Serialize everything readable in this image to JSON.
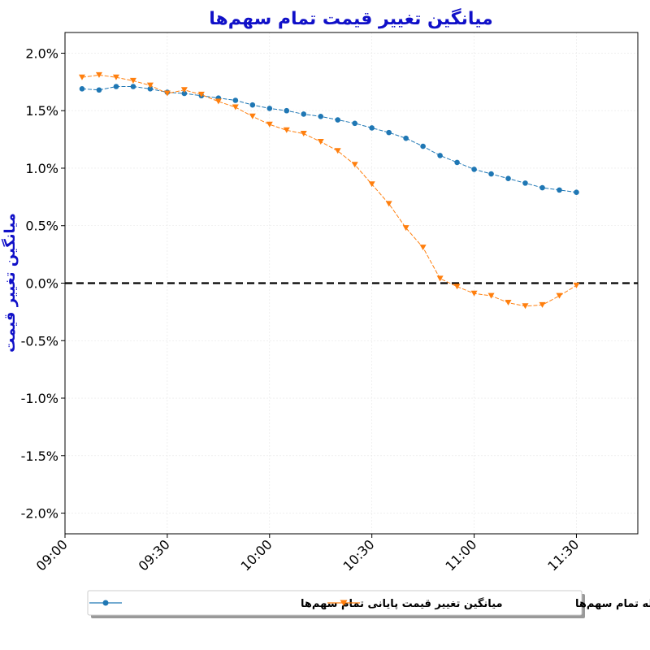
{
  "chart_data": {
    "type": "line",
    "title": "میانگین تغییر قیمت تمام سهم‌ها",
    "xlabel": "",
    "ylabel": "میانگین تغییر قیمت",
    "x_ticks": [
      "09:00",
      "09:30",
      "10:00",
      "10:30",
      "11:00",
      "11:30"
    ],
    "y_ticks": [
      "-2.0%",
      "-1.5%",
      "-1.0%",
      "-0.5%",
      "0.0%",
      "0.5%",
      "1.0%",
      "1.5%",
      "2.0%"
    ],
    "ylim": [
      -2.18,
      2.18
    ],
    "xlim": [
      "09:00",
      "11:48"
    ],
    "y_unit": "percent",
    "grid": true,
    "legend_position": "bottom-center",
    "reference_line": {
      "y": 0.0,
      "style": "dashed",
      "color": "#000000"
    },
    "x": [
      "09:05",
      "09:10",
      "09:15",
      "09:20",
      "09:25",
      "09:30",
      "09:35",
      "09:40",
      "09:45",
      "09:50",
      "09:55",
      "10:00",
      "10:05",
      "10:10",
      "10:15",
      "10:20",
      "10:25",
      "10:30",
      "10:35",
      "10:40",
      "10:45",
      "10:50",
      "10:55",
      "11:00",
      "11:05",
      "11:10",
      "11:15",
      "11:20",
      "11:25",
      "11:30",
      "11:35"
    ],
    "series": [
      {
        "name": "میانگین تغییر قیمت پایانی تمام سهم‌ها",
        "color": "#1f77b4",
        "marker": "circle",
        "values": [
          1.69,
          1.68,
          1.71,
          1.71,
          1.69,
          1.66,
          1.65,
          1.63,
          1.61,
          1.59,
          1.55,
          1.52,
          1.5,
          1.47,
          1.45,
          1.42,
          1.39,
          1.35,
          1.31,
          1.26,
          1.19,
          1.11,
          1.05,
          0.99,
          0.95,
          0.91,
          0.87,
          0.83,
          0.81,
          0.79,
          null
        ]
      },
      {
        "name": "میانگین تغییر قیمت آخرین معامله تمام سهم‌ها",
        "color": "#ff7f0e",
        "marker": "triangle-down",
        "values": [
          1.79,
          1.81,
          1.79,
          1.76,
          1.72,
          1.65,
          1.68,
          1.64,
          1.58,
          1.53,
          1.45,
          1.38,
          1.33,
          1.3,
          1.23,
          1.15,
          1.03,
          0.86,
          0.69,
          0.48,
          0.31,
          0.04,
          -0.03,
          -0.09,
          -0.11,
          -0.17,
          -0.2,
          -0.19,
          -0.11,
          -0.02,
          null
        ]
      }
    ]
  }
}
